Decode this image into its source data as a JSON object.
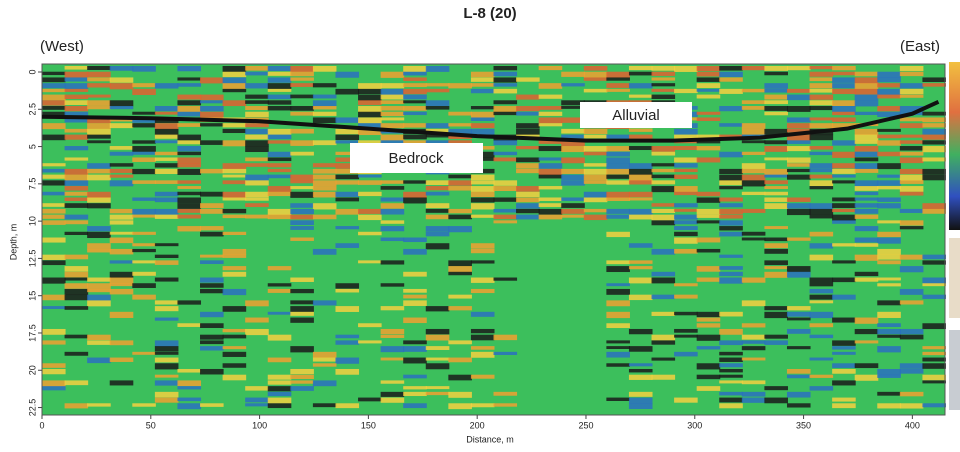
{
  "chart_data": {
    "type": "radargram",
    "title": "L-8 (20)",
    "x_label": "Distance, m",
    "y_label": "Depth, m",
    "annotations": [
      "(West)",
      "(East)",
      "Bedrock",
      "Alluvial"
    ],
    "xlim": [
      0,
      415
    ],
    "xticks": [
      0,
      50,
      100,
      150,
      200,
      250,
      300,
      350,
      400
    ],
    "ylim": [
      0,
      23
    ],
    "yticks": [
      0,
      2.5,
      5,
      7.5,
      10,
      12.5,
      15,
      17.5,
      20,
      22.5
    ],
    "boundary": {
      "x": [
        0,
        50,
        100,
        150,
        200,
        250,
        290,
        330,
        370,
        400,
        412
      ],
      "y": [
        3.0,
        3.1,
        3.3,
        3.8,
        4.3,
        4.6,
        4.6,
        4.4,
        3.8,
        2.8,
        2.0
      ],
      "color": "#111111"
    }
  }
}
